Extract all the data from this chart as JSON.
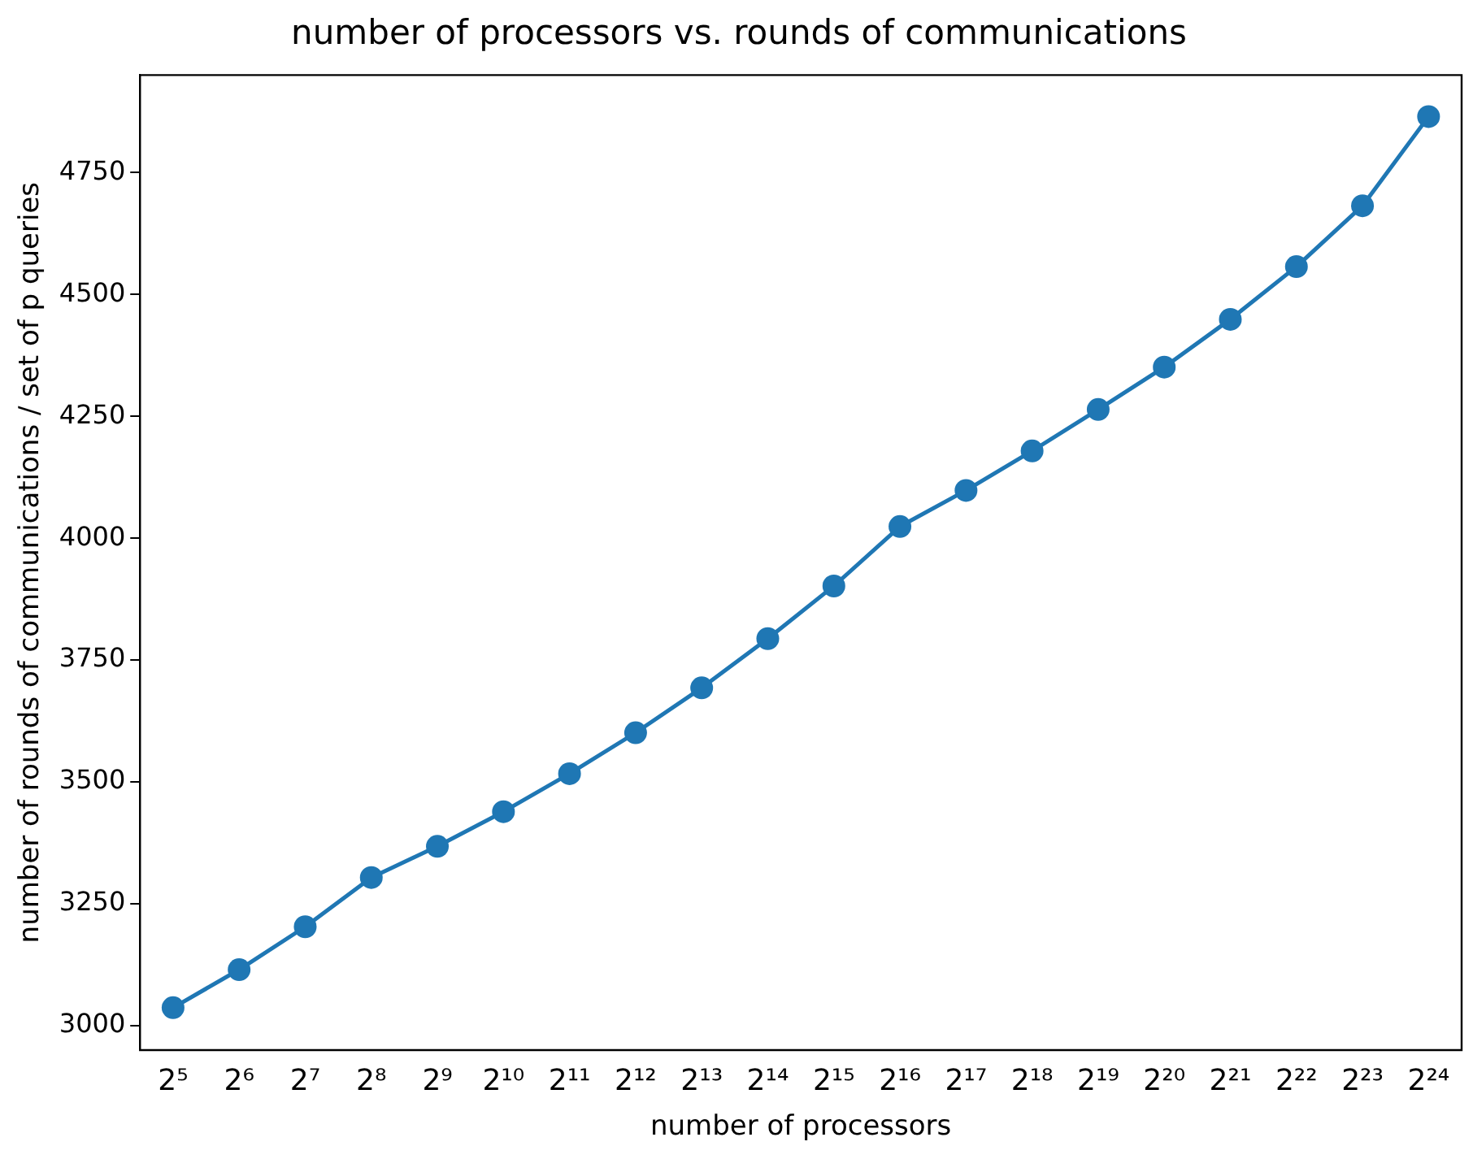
{
  "chart_data": {
    "type": "line",
    "title": "number of processors vs. rounds of communications",
    "xlabel": "number of processors",
    "ylabel": "number of rounds of communications / set of p queries",
    "categories": [
      "2⁵",
      "2⁶",
      "2⁷",
      "2⁸",
      "2⁹",
      "2¹⁰",
      "2¹¹",
      "2¹²",
      "2¹³",
      "2¹⁴",
      "2¹⁵",
      "2¹⁶",
      "2¹⁷",
      "2¹⁸",
      "2¹⁹",
      "2²⁰",
      "2²¹",
      "2²²",
      "2²³",
      "2²⁴"
    ],
    "series": [
      {
        "color": "#1f77b4",
        "values": [
          3037,
          3115,
          3203,
          3304,
          3368,
          3439,
          3517,
          3601,
          3693,
          3794,
          3902,
          4024,
          4098,
          4179,
          4264,
          4351,
          4449,
          4557,
          4682,
          4865
        ]
      }
    ],
    "ylim": [
      2950,
      4950
    ],
    "yticks": [
      3000,
      3250,
      3500,
      3750,
      4000,
      4250,
      4500,
      4750
    ],
    "grid": false,
    "legend": false,
    "marker": "circle",
    "line_style": "solid"
  }
}
